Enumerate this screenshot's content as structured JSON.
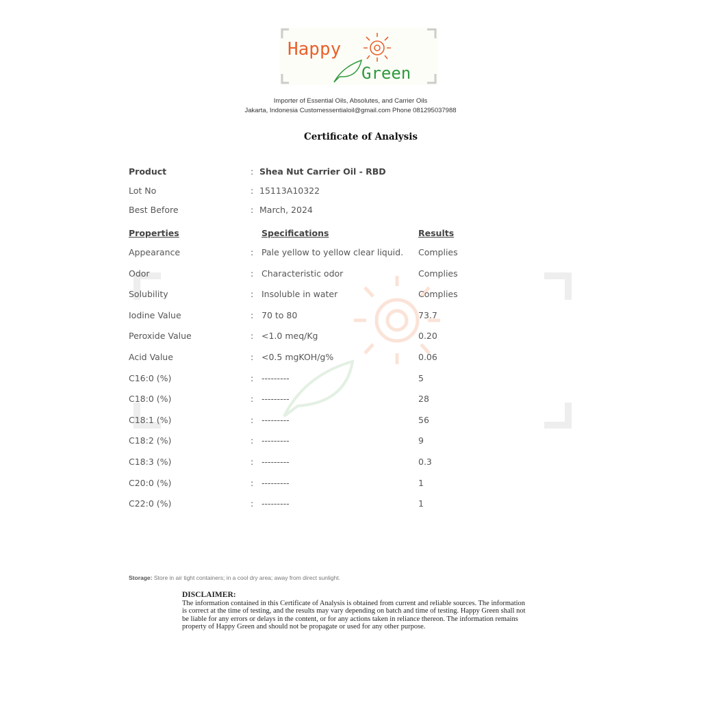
{
  "logo": {
    "word1": "Happy",
    "word2": "Green",
    "orange": "#e8622c",
    "green": "#2f9a3e"
  },
  "header": {
    "line1": "Importer of Essential Oils, Absolutes, and Carrier Oils",
    "line2": "Jakarta, Indonesia Customessentialoil@gmail.com Phone 081295037988"
  },
  "title": "Certificate of Analysis",
  "info": [
    {
      "label": "Product",
      "value": "Shea Nut Carrier Oil - RBD"
    },
    {
      "label": "Lot No",
      "value": "15113A10322"
    },
    {
      "label": "Best Before",
      "value": "March, 2024"
    }
  ],
  "columns": {
    "properties": "Properties",
    "specifications": "Specifications",
    "results": "Results"
  },
  "rows": [
    {
      "property": "Appearance",
      "spec": "Pale yellow to yellow clear liquid.",
      "result": "Complies"
    },
    {
      "property": "Odor",
      "spec": "Characteristic odor",
      "result": "Complies"
    },
    {
      "property": "Solubility",
      "spec": "Insoluble in water",
      "result": "Complies"
    },
    {
      "property": "Iodine Value",
      "spec": "70 to 80",
      "result": "73.7"
    },
    {
      "property": "Peroxide Value",
      "spec": "<1.0 meq/Kg",
      "result": "0.20"
    },
    {
      "property": "Acid Value",
      "spec": "<0.5 mgKOH/g%",
      "result": "0.06"
    },
    {
      "property": "C16:0 (%)",
      "spec": "---------",
      "result": "5"
    },
    {
      "property": "C18:0 (%)",
      "spec": "---------",
      "result": "28"
    },
    {
      "property": "C18:1 (%)",
      "spec": "---------",
      "result": "56"
    },
    {
      "property": "C18:2 (%)",
      "spec": "---------",
      "result": "9"
    },
    {
      "property": "C18:3 (%)",
      "spec": "---------",
      "result": "0.3"
    },
    {
      "property": "C20:0 (%)",
      "spec": "---------",
      "result": "1"
    },
    {
      "property": "C22:0 (%)",
      "spec": "---------",
      "result": "1"
    }
  ],
  "separator": ":",
  "storage": {
    "label": "Storage:",
    "text": "Store in air tight containers; in a cool dry area; away from direct sunlight."
  },
  "disclaimer": {
    "title": "DISCLAIMER:",
    "text": "The information contained in this Certificate of Analysis is obtained from current and reliable sources. The information is correct at the time of testing, and the results may vary depending on batch and time of testing.  Happy Green shall not be liable for any errors or delays in the content, or for any actions taken in reliance thereon. The information remains property of Happy Green and should not be propagate or used for any other purpose."
  }
}
